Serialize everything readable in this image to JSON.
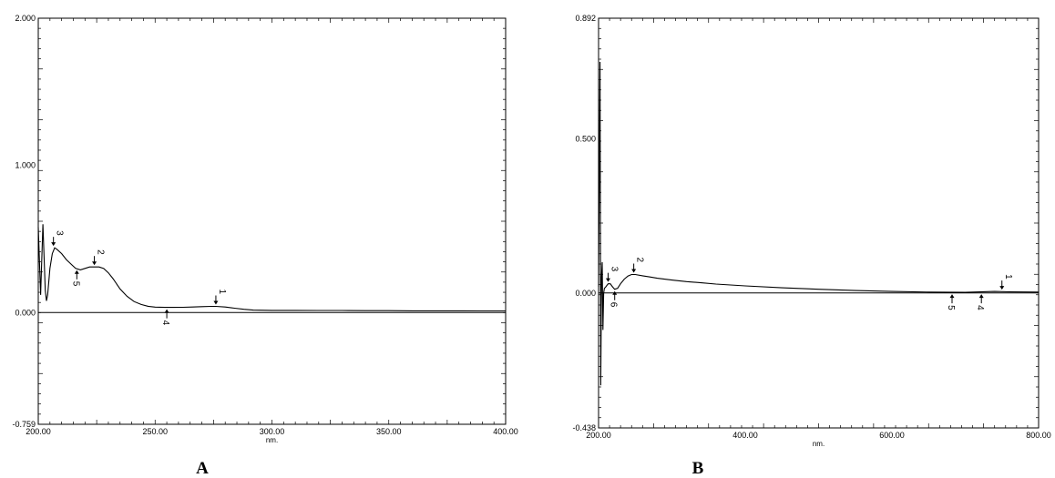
{
  "chart_data": [
    {
      "id": "A",
      "type": "line",
      "panel_label": "A",
      "xlabel": "nm.",
      "xlim": [
        200,
        400
      ],
      "ylim": [
        -0.759,
        2.0
      ],
      "x_ticks": [
        200,
        250,
        300,
        350,
        400
      ],
      "x_tick_labels": [
        "200.00",
        "250.00",
        "300.00",
        "350.00",
        "400.00"
      ],
      "y_ticks": [
        -0.759,
        0,
        1,
        2
      ],
      "y_tick_labels": [
        "-0.759",
        "0.000",
        "1.000",
        "2.000"
      ],
      "series": [
        {
          "x": [
            200,
            201,
            202,
            203,
            203.5,
            204,
            205,
            206,
            207,
            208,
            210,
            212,
            214,
            216,
            218,
            220,
            222,
            224,
            226,
            228,
            230,
            232,
            235,
            238,
            241,
            244,
            247,
            250,
            254,
            258,
            262,
            266,
            270,
            274,
            276,
            280,
            284,
            288,
            292,
            300,
            310,
            320,
            330,
            340,
            350,
            360,
            370,
            380,
            390,
            400
          ],
          "y": [
            0.58,
            0.12,
            0.6,
            0.15,
            0.08,
            0.12,
            0.3,
            0.4,
            0.44,
            0.43,
            0.4,
            0.36,
            0.33,
            0.3,
            0.29,
            0.3,
            0.31,
            0.31,
            0.31,
            0.3,
            0.27,
            0.23,
            0.16,
            0.11,
            0.075,
            0.055,
            0.043,
            0.037,
            0.035,
            0.035,
            0.036,
            0.038,
            0.04,
            0.042,
            0.042,
            0.038,
            0.03,
            0.022,
            0.017,
            0.015,
            0.015,
            0.014,
            0.014,
            0.013,
            0.013,
            0.012,
            0.012,
            0.012,
            0.011,
            0.011
          ]
        }
      ],
      "markers": [
        {
          "label": "3",
          "x": 206.5,
          "y": 0.44,
          "side": "above"
        },
        {
          "label": "2",
          "x": 224,
          "y": 0.31,
          "side": "above"
        },
        {
          "label": "5",
          "x": 216.5,
          "y": 0.3,
          "side": "below"
        },
        {
          "label": "4",
          "x": 255,
          "y": 0.035,
          "side": "below"
        },
        {
          "label": "1",
          "x": 276,
          "y": 0.042,
          "side": "above"
        }
      ]
    },
    {
      "id": "B",
      "type": "line",
      "panel_label": "B",
      "xlabel": "nm.",
      "xlim": [
        200,
        800
      ],
      "ylim": [
        -0.438,
        0.892
      ],
      "x_ticks": [
        200,
        400,
        600,
        800
      ],
      "x_tick_labels": [
        "200.00",
        "400.00",
        "600.00",
        "800.00"
      ],
      "y_ticks": [
        -0.438,
        0,
        0.5,
        0.892
      ],
      "y_tick_labels": [
        "-0.438",
        "0.000",
        "0.500",
        "0.892"
      ],
      "series": [
        {
          "x": [
            200,
            202,
            203,
            204,
            205,
            206,
            207,
            208,
            210,
            213,
            216,
            219,
            222,
            226,
            230,
            235,
            240,
            245,
            250,
            260,
            270,
            280,
            300,
            320,
            340,
            360,
            380,
            400,
            450,
            500,
            550,
            600,
            650,
            700,
            740,
            760,
            800
          ],
          "y": [
            0.02,
            0.75,
            -0.3,
            0.05,
            0.1,
            -0.12,
            0.0,
            0.015,
            0.02,
            0.03,
            0.03,
            0.02,
            0.012,
            0.015,
            0.03,
            0.045,
            0.055,
            0.06,
            0.06,
            0.056,
            0.052,
            0.048,
            0.042,
            0.037,
            0.033,
            0.029,
            0.026,
            0.023,
            0.017,
            0.012,
            0.008,
            0.005,
            0.003,
            0.002,
            0.005,
            0.004,
            0.003
          ]
        }
      ],
      "markers": [
        {
          "label": "3",
          "x": 213,
          "y": 0.03,
          "side": "above"
        },
        {
          "label": "2",
          "x": 248,
          "y": 0.06,
          "side": "above"
        },
        {
          "label": "6",
          "x": 222,
          "y": 0.012,
          "side": "below"
        },
        {
          "label": "5",
          "x": 682,
          "y": 0.002,
          "side": "below"
        },
        {
          "label": "4",
          "x": 722,
          "y": 0.002,
          "side": "below"
        },
        {
          "label": "1",
          "x": 750,
          "y": 0.005,
          "side": "above"
        }
      ]
    }
  ]
}
